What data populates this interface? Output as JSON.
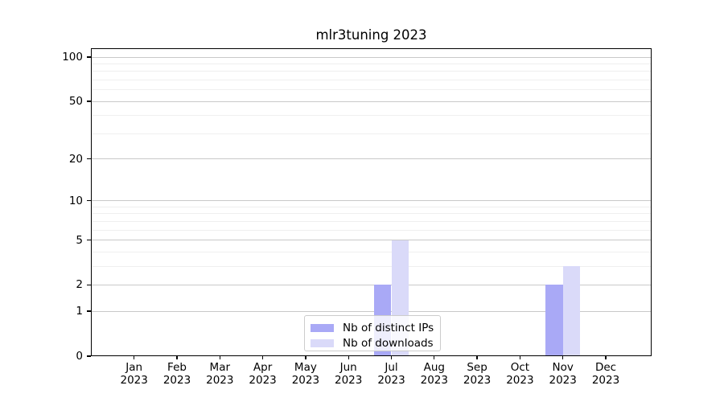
{
  "chart_data": {
    "type": "bar",
    "title": "mlr3tuning 2023",
    "categories": [
      "Jan",
      "Feb",
      "Mar",
      "Apr",
      "May",
      "Jun",
      "Jul",
      "Aug",
      "Sep",
      "Oct",
      "Nov",
      "Dec"
    ],
    "year": "2023",
    "series": [
      {
        "name": "Nb of distinct IPs",
        "color": "#a9a9f6",
        "values": [
          0,
          0,
          0,
          0,
          0,
          0,
          2,
          0,
          0,
          0,
          2,
          0
        ]
      },
      {
        "name": "Nb of downloads",
        "color": "#dadaf9",
        "values": [
          0,
          0,
          0,
          0,
          0,
          0,
          5,
          0,
          0,
          0,
          3,
          0
        ]
      }
    ],
    "xlabel": "",
    "ylabel": "",
    "yscale": "log1p",
    "y_ticks": [
      0,
      1,
      2,
      5,
      10,
      20,
      50,
      100
    ],
    "y_minor_ticks": [
      3,
      4,
      6,
      7,
      8,
      9,
      30,
      40,
      60,
      70,
      80,
      90
    ],
    "ylim": [
      0,
      115
    ],
    "grid": true,
    "legend_position": "lower center"
  },
  "colors": {
    "grid_major": "#c9c9c9",
    "grid_minor": "#efefef",
    "axis": "#000000",
    "background": "#ffffff"
  }
}
